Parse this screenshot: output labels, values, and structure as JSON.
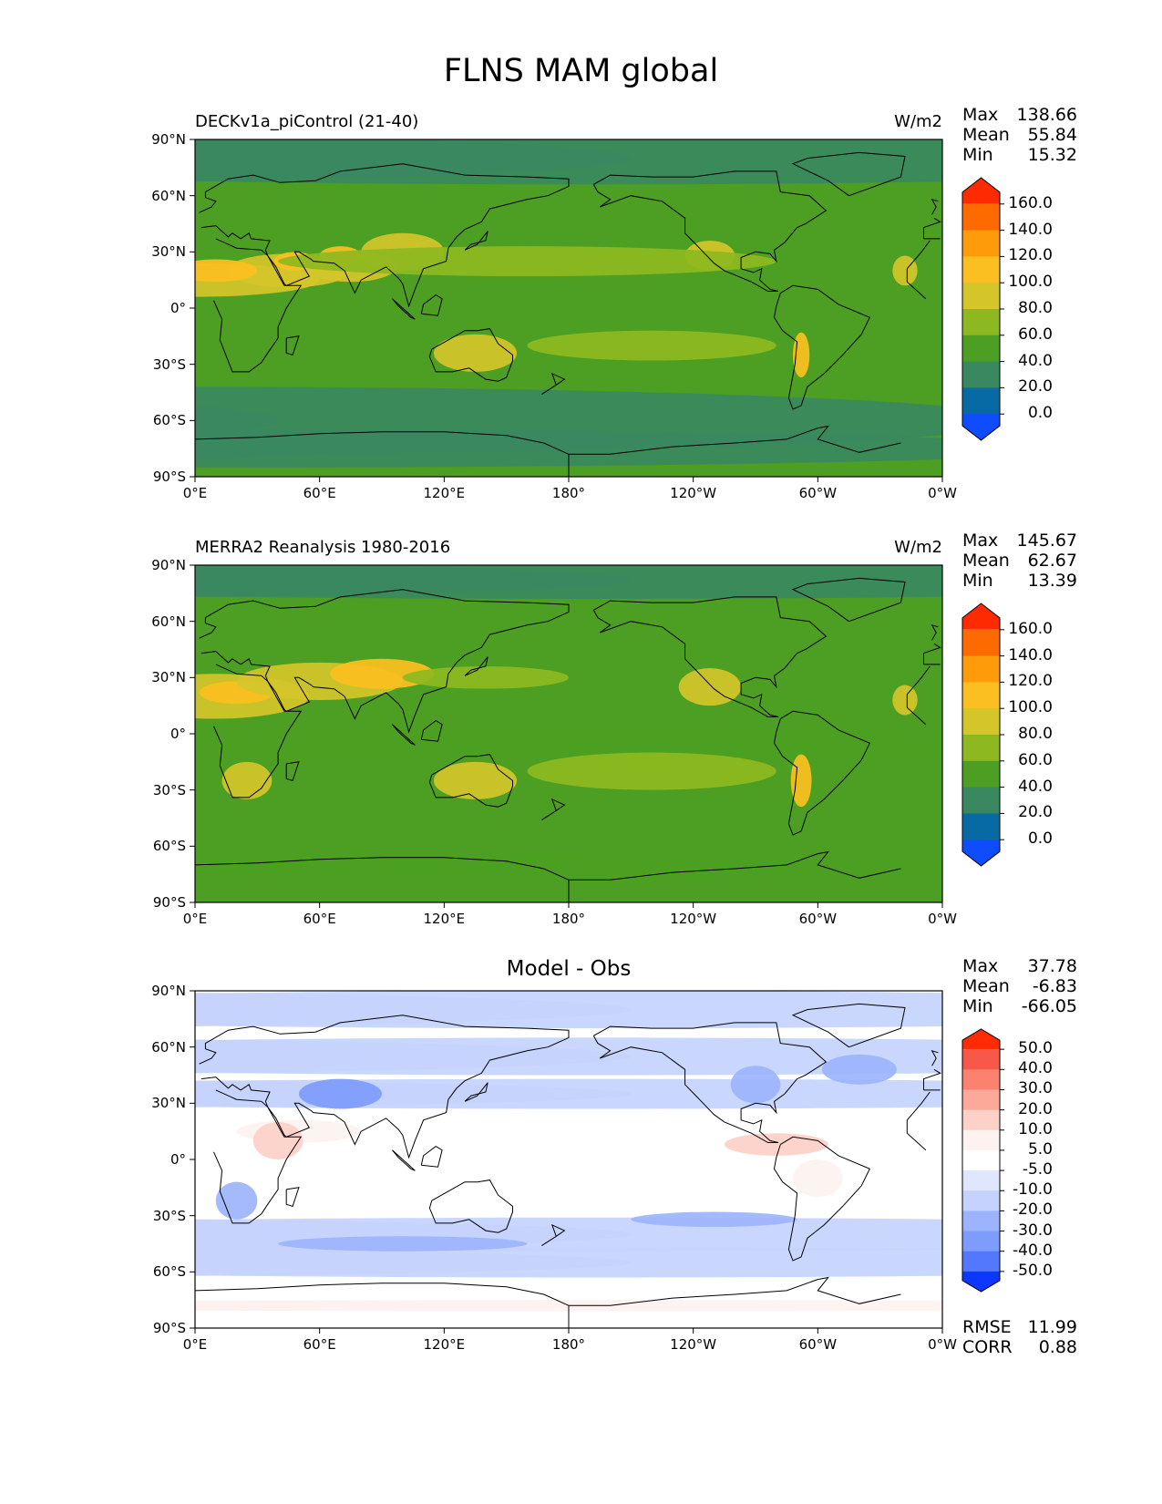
{
  "figure_title": "FLNS MAM global",
  "y_tick_labels": [
    "90°N",
    "60°N",
    "30°N",
    "0°",
    "30°S",
    "60°S",
    "90°S"
  ],
  "x_tick_labels": [
    "0°E",
    "60°E",
    "120°E",
    "180°",
    "120°W",
    "60°W",
    "0°W"
  ],
  "panels": [
    {
      "title_left": "DECKv1a_piControl (21-40)",
      "title_right": "W/m2",
      "title_center": "",
      "stats": [
        {
          "label": "Max",
          "value": "138.66"
        },
        {
          "label": "Mean",
          "value": "55.84"
        },
        {
          "label": "Min",
          "value": "15.32"
        }
      ],
      "colorbar_labels": [
        "160.0",
        "140.0",
        "120.0",
        "100.0",
        "80.0",
        "60.0",
        "40.0",
        "20.0",
        "0.0"
      ],
      "colorbar_colors": [
        "#fe2a00",
        "#fd6a00",
        "#fd9b0a",
        "#fcbf21",
        "#d4c62a",
        "#8eb81f",
        "#4c9f22",
        "#3a8860",
        "#086aa4",
        "#0f4cfe"
      ],
      "footer": []
    },
    {
      "title_left": "MERRA2 Reanalysis 1980-2016",
      "title_right": "W/m2",
      "title_center": "",
      "stats": [
        {
          "label": "Max",
          "value": "145.67"
        },
        {
          "label": "Mean",
          "value": "62.67"
        },
        {
          "label": "Min",
          "value": "13.39"
        }
      ],
      "colorbar_labels": [
        "160.0",
        "140.0",
        "120.0",
        "100.0",
        "80.0",
        "60.0",
        "40.0",
        "20.0",
        "0.0"
      ],
      "colorbar_colors": [
        "#fe2a00",
        "#fd6a00",
        "#fd9b0a",
        "#fcbf21",
        "#d4c62a",
        "#8eb81f",
        "#4c9f22",
        "#3a8860",
        "#086aa4",
        "#0f4cfe"
      ],
      "footer": []
    },
    {
      "title_left": "",
      "title_right": "",
      "title_center": "Model - Obs",
      "stats": [
        {
          "label": "Max",
          "value": "37.78"
        },
        {
          "label": "Mean",
          "value": "-6.83"
        },
        {
          "label": "Min",
          "value": "-66.05"
        }
      ],
      "colorbar_labels": [
        "50.0",
        "40.0",
        "30.0",
        "20.0",
        "10.0",
        "5.0",
        "-5.0",
        "-10.0",
        "-20.0",
        "-30.0",
        "-40.0",
        "-50.0"
      ],
      "colorbar_colors": [
        "#fe2b04",
        "#f8584a",
        "#fb826e",
        "#fca99a",
        "#fdd0c8",
        "#fdf2ef",
        "#ffffff",
        "#e0e7fd",
        "#c4d2fd",
        "#9cb4fd",
        "#7d9cfc",
        "#5378fd",
        "#0c37fe"
      ],
      "footer": [
        {
          "label": "RMSE",
          "value": "11.99"
        },
        {
          "label": "CORR",
          "value": "0.88"
        }
      ]
    }
  ]
}
